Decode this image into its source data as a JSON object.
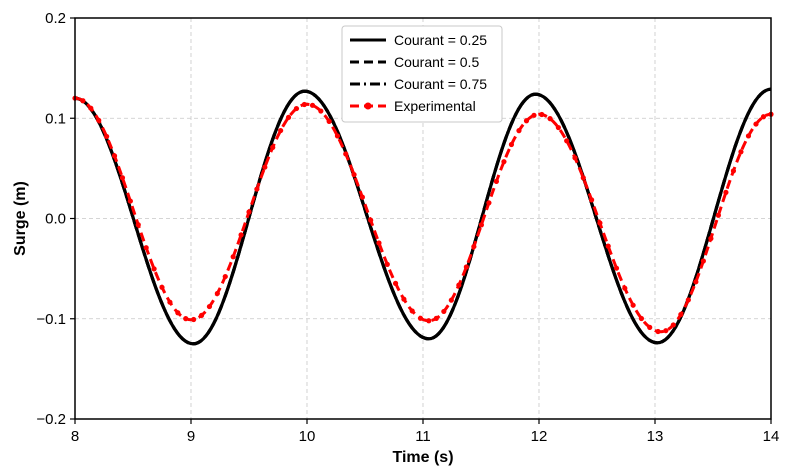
{
  "chart_data": {
    "type": "line",
    "xlabel": "Time (s)",
    "ylabel": "Surge (m)",
    "xlim": [
      8,
      14
    ],
    "ylim": [
      -0.2,
      0.2
    ],
    "grid": true,
    "legend_position": "top-center",
    "x_ticks": [
      8,
      9,
      10,
      11,
      12,
      13,
      14
    ],
    "x_tick_labels": [
      "8",
      "9",
      "10",
      "11",
      "12",
      "13",
      "14"
    ],
    "y_ticks": [
      -0.2,
      -0.1,
      0.0,
      0.1,
      0.2
    ],
    "y_tick_labels": [
      "−0.2",
      "−0.1",
      "0.0",
      "0.1",
      "0.2"
    ],
    "series": [
      {
        "name": "Courant = 0.25",
        "style": "solid",
        "color": "#000000",
        "x": [
          8.0,
          9.02,
          9.98,
          11.05,
          11.97,
          13.02,
          14.0
        ],
        "y": [
          0.12,
          -0.125,
          0.127,
          -0.12,
          0.124,
          -0.124,
          0.129
        ]
      },
      {
        "name": "Courant = 0.5",
        "style": "dashed",
        "color": "#000000",
        "x": [
          8.0,
          9.02,
          9.98,
          11.05,
          11.97,
          13.02,
          14.0
        ],
        "y": [
          0.12,
          -0.125,
          0.127,
          -0.12,
          0.124,
          -0.124,
          0.129
        ]
      },
      {
        "name": "Courant = 0.75",
        "style": "dashdot",
        "color": "#000000",
        "x": [
          8.0,
          9.02,
          9.98,
          11.05,
          11.97,
          13.02,
          14.0
        ],
        "y": [
          0.12,
          -0.125,
          0.127,
          -0.12,
          0.124,
          -0.124,
          0.129
        ]
      },
      {
        "name": "Experimental",
        "style": "dashed-marker",
        "color": "#ff0000",
        "x": [
          8.0,
          9.0,
          10.0,
          11.05,
          12.0,
          13.05,
          14.0
        ],
        "y": [
          0.12,
          -0.101,
          0.114,
          -0.102,
          0.104,
          -0.113,
          0.104
        ]
      }
    ]
  }
}
